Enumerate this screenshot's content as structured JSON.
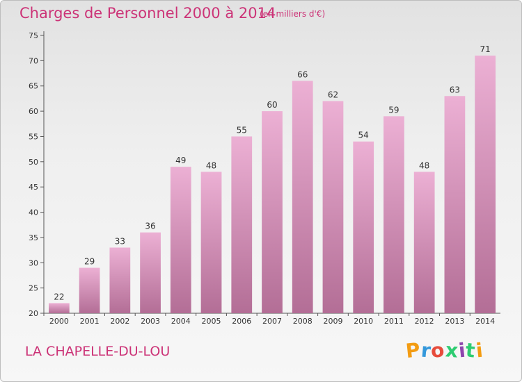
{
  "title": "Charges de Personnel 2000 à 2014",
  "subtitle": "(en milliers d'€)",
  "commune": "LA CHAPELLE-DU-LOU",
  "logo": {
    "letters": [
      "P",
      "r",
      "o",
      "x",
      "i",
      "t",
      "i"
    ],
    "colors": [
      "#f39c12",
      "#3498db",
      "#e74c3c",
      "#2ecc71",
      "#8e44ad",
      "#2ecc71",
      "#f39c12"
    ]
  },
  "colors": {
    "bar_light": "#ecb0d4",
    "bar_dark": "#b36e96",
    "accent": "#cc3377"
  },
  "chart_data": {
    "type": "bar",
    "categories": [
      "2000",
      "2001",
      "2002",
      "2003",
      "2004",
      "2005",
      "2006",
      "2007",
      "2008",
      "2009",
      "2010",
      "2011",
      "2012",
      "2013",
      "2014"
    ],
    "values": [
      22,
      29,
      33,
      36,
      49,
      48,
      55,
      60,
      66,
      62,
      54,
      59,
      48,
      63,
      71
    ],
    "title": "Charges de Personnel 2000 à 2014",
    "ylabel": "",
    "xlabel": "",
    "ylim": [
      20,
      75
    ],
    "yticks": [
      20,
      25,
      30,
      35,
      40,
      45,
      50,
      55,
      60,
      65,
      70,
      75
    ],
    "grid": false,
    "legend": "none"
  }
}
